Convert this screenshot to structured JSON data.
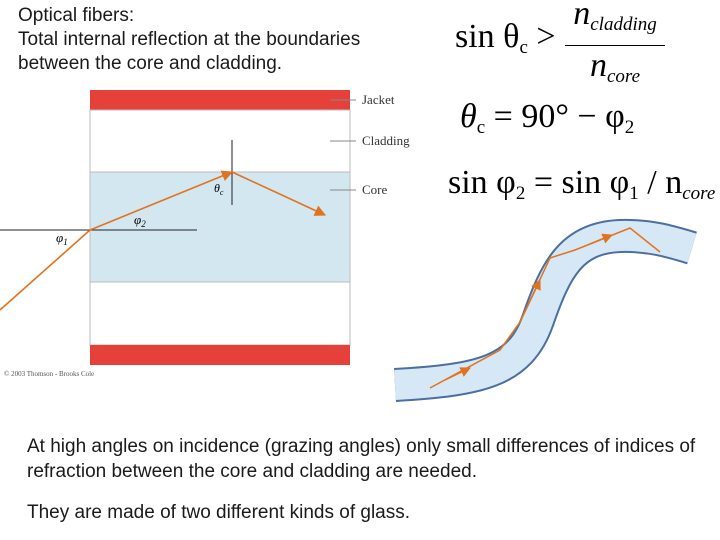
{
  "header": {
    "lines": [
      "Optical fibers:",
      "Total internal reflection at the boundaries",
      "between the core and cladding."
    ]
  },
  "equations": {
    "critical": {
      "lhs": "sin θ",
      "lhs_sub": "c",
      "op": ">",
      "numerator": "n",
      "numerator_sub": "cladding",
      "denominator": "n",
      "denominator_sub": "core"
    },
    "angle": {
      "lhs": "θ",
      "lhs_sub": "c",
      "rhs": "= 90° − φ",
      "rhs_sub": "2"
    },
    "snell": {
      "lhs": "sin φ",
      "lhs_sub": "2",
      "mid": "= sin φ",
      "mid_sub": "1",
      "rhs": "/ n",
      "rhs_sub": "core"
    }
  },
  "diagram": {
    "labels": {
      "jacket": "Jacket",
      "cladding": "Cladding",
      "core": "Core"
    },
    "angles": {
      "theta": "θ",
      "theta_sub": "c",
      "phi2": "φ",
      "phi2_sub": "2",
      "phi1": "φ",
      "phi1_sub": "1"
    },
    "credit": "© 2003 Thomson - Brooks Cole"
  },
  "body": {
    "paragraphs": [
      "At high angles on incidence (grazing angles) only small differences of indices of refraction between the core and cladding are needed.",
      "They are made of two different kinds of glass."
    ]
  }
}
